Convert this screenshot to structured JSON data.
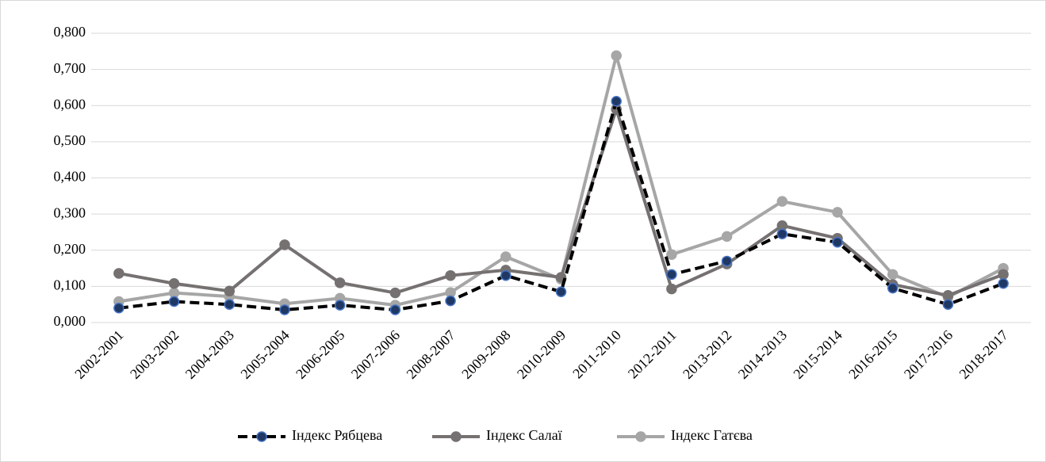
{
  "chart_data": {
    "type": "line",
    "categories": [
      "2002-2001",
      "2003-2002",
      "2004-2003",
      "2005-2004",
      "2006-2005",
      "2007-2006",
      "2008-2007",
      "2009-2008",
      "2010-2009",
      "2011-2010",
      "2012-2011",
      "2013-2012",
      "2014-2013",
      "2015-2014",
      "2016-2015",
      "2017-2016",
      "2018-2017"
    ],
    "series": [
      {
        "name": "Індекс Рябцева",
        "color": "#000000",
        "dashed": true,
        "marker_color": "#1f3864",
        "marker_edge": "#4472c4",
        "values": [
          0.04,
          0.058,
          0.05,
          0.035,
          0.048,
          0.035,
          0.06,
          0.13,
          0.085,
          0.612,
          0.133,
          0.17,
          0.245,
          0.222,
          0.095,
          0.05,
          0.108
        ]
      },
      {
        "name": "Індекс Салаї",
        "color": "#767171",
        "dashed": false,
        "marker_color": "#767171",
        "marker_edge": "#767171",
        "values": [
          0.136,
          0.108,
          0.087,
          0.215,
          0.11,
          0.082,
          0.13,
          0.145,
          0.125,
          0.59,
          0.093,
          0.162,
          0.268,
          0.233,
          0.105,
          0.075,
          0.133
        ]
      },
      {
        "name": "Індекс Гатєва",
        "color": "#a6a6a6",
        "dashed": false,
        "marker_color": "#a6a6a6",
        "marker_edge": "#a6a6a6",
        "values": [
          0.058,
          0.082,
          0.072,
          0.052,
          0.067,
          0.048,
          0.083,
          0.182,
          0.12,
          0.738,
          0.188,
          0.238,
          0.335,
          0.305,
          0.133,
          0.07,
          0.15
        ]
      }
    ],
    "ylim": [
      0,
      0.8
    ],
    "yticks": [
      {
        "value": 0,
        "label": "0,000"
      },
      {
        "value": 0.1,
        "label": "0,100"
      },
      {
        "value": 0.2,
        "label": "0,200"
      },
      {
        "value": 0.3,
        "label": "0,300"
      },
      {
        "value": 0.4,
        "label": "0,400"
      },
      {
        "value": 0.5,
        "label": "0,500"
      },
      {
        "value": 0.6,
        "label": "0,600"
      },
      {
        "value": 0.7,
        "label": "0,700"
      },
      {
        "value": 0.8,
        "label": "0,800"
      }
    ],
    "grid": true,
    "legend": "bottom"
  }
}
